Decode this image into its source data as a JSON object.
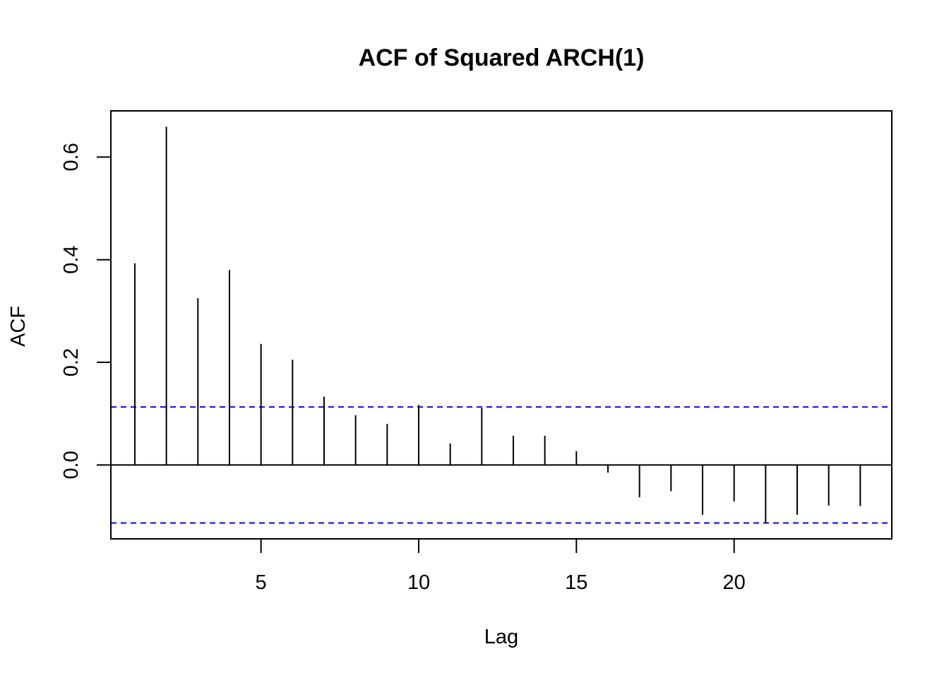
{
  "chart_data": {
    "type": "bar",
    "title": "ACF of Squared ARCH(1)",
    "xlabel": "Lag",
    "ylabel": "ACF",
    "x": [
      1,
      2,
      3,
      4,
      5,
      6,
      7,
      8,
      9,
      10,
      11,
      12,
      13,
      14,
      15,
      16,
      17,
      18,
      19,
      20,
      21,
      22,
      23,
      24
    ],
    "values": [
      0.393,
      0.659,
      0.325,
      0.38,
      0.236,
      0.205,
      0.133,
      0.097,
      0.08,
      0.117,
      0.042,
      0.111,
      0.057,
      0.057,
      0.027,
      -0.015,
      -0.063,
      -0.051,
      -0.097,
      -0.071,
      -0.113,
      -0.097,
      -0.079,
      -0.08
    ],
    "xlim": [
      0.24,
      25.0
    ],
    "ylim": [
      -0.144,
      0.69
    ],
    "x_ticks": [
      5,
      10,
      15,
      20
    ],
    "y_ticks": [
      0.0,
      0.2,
      0.4,
      0.6
    ],
    "y_tick_labels": [
      "0.0",
      "0.2",
      "0.4",
      "0.6"
    ],
    "confidence_bounds": [
      0.113,
      -0.113
    ],
    "confidence_color": "#0000ff",
    "zero_line": 0,
    "grid": false,
    "legend": "none"
  }
}
